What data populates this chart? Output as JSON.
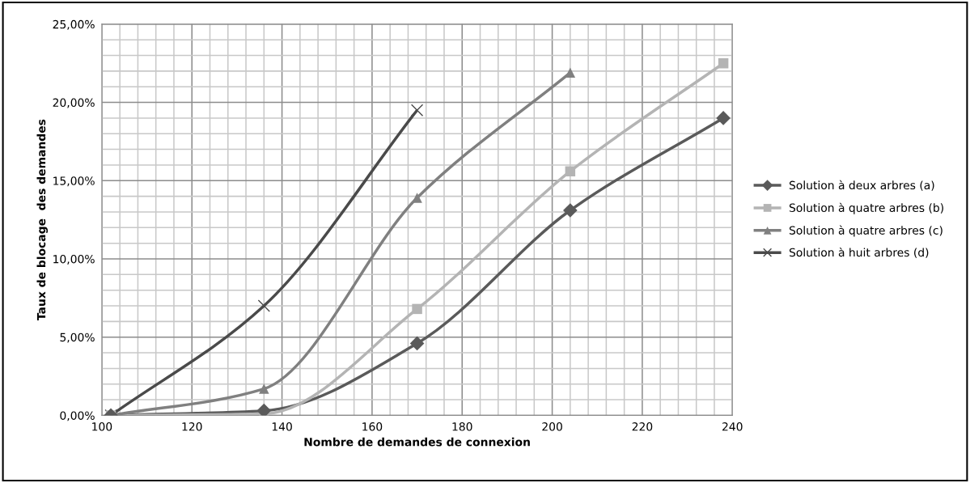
{
  "chart_data": {
    "type": "line",
    "xlabel": "Nombre de demandes de connexion",
    "ylabel": "Taux de blocage  des demandes",
    "x": [
      102,
      136,
      170,
      204,
      238
    ],
    "series": [
      {
        "name": "Solution à deux arbres (a)",
        "color": "#5a5a5a",
        "marker": "diamond",
        "values": [
          0,
          0.3,
          4.6,
          13.1,
          19.0
        ]
      },
      {
        "name": "Solution à quatre arbres (b)",
        "color": "#b4b4b4",
        "marker": "square",
        "values": [
          0,
          0.1,
          6.8,
          15.6,
          22.5
        ]
      },
      {
        "name": "Solution à quatre arbres (c)",
        "color": "#808080",
        "marker": "triangle",
        "values": [
          0,
          1.7,
          13.9,
          21.9,
          null
        ]
      },
      {
        "name": "Solution à huit arbres (d)",
        "color": "#4a4a4a",
        "marker": "cross",
        "values": [
          0,
          7.0,
          19.5,
          null,
          null
        ]
      }
    ],
    "xlim": [
      100,
      240
    ],
    "xticks": [
      100,
      {
        "value": 104,
        "label": null
      },
      {
        "value": 108,
        "label": null
      },
      {
        "value": 112,
        "label": null
      },
      {
        "value": 116,
        "label": null
      },
      120,
      {
        "value": 124,
        "label": null
      },
      {
        "value": 128,
        "label": null
      },
      {
        "value": 132,
        "label": null
      },
      {
        "value": 136,
        "label": null
      },
      140,
      {
        "value": 144,
        "label": null
      },
      {
        "value": 148,
        "label": null
      },
      {
        "value": 152,
        "label": null
      },
      {
        "value": 156,
        "label": null
      },
      160,
      {
        "value": 164,
        "label": null
      },
      {
        "value": 168,
        "label": null
      },
      {
        "value": 172,
        "label": null
      },
      {
        "value": 176,
        "label": null
      },
      180,
      {
        "value": 184,
        "label": null
      },
      {
        "value": 188,
        "label": null
      },
      {
        "value": 192,
        "label": null
      },
      {
        "value": 196,
        "label": null
      },
      200,
      {
        "value": 204,
        "label": null
      },
      {
        "value": 208,
        "label": null
      },
      {
        "value": 212,
        "label": null
      },
      {
        "value": 216,
        "label": null
      },
      220,
      {
        "value": 224,
        "label": null
      },
      {
        "value": 228,
        "label": null
      },
      {
        "value": 232,
        "label": null
      },
      {
        "value": 236,
        "label": null
      },
      240
    ],
    "ylim": [
      0,
      25
    ],
    "yticks": [
      {
        "value": 0,
        "label": "0,00%"
      },
      {
        "value": 1,
        "label": null
      },
      {
        "value": 2,
        "label": null
      },
      {
        "value": 3,
        "label": null
      },
      {
        "value": 4,
        "label": null
      },
      {
        "value": 5,
        "label": "5,00%"
      },
      {
        "value": 6,
        "label": null
      },
      {
        "value": 7,
        "label": null
      },
      {
        "value": 8,
        "label": null
      },
      {
        "value": 9,
        "label": null
      },
      {
        "value": 10,
        "label": "10,00%"
      },
      {
        "value": 11,
        "label": null
      },
      {
        "value": 12,
        "label": null
      },
      {
        "value": 13,
        "label": null
      },
      {
        "value": 14,
        "label": null
      },
      {
        "value": 15,
        "label": "15,00%"
      },
      {
        "value": 16,
        "label": null
      },
      {
        "value": 17,
        "label": null
      },
      {
        "value": 18,
        "label": null
      },
      {
        "value": 19,
        "label": null
      },
      {
        "value": 20,
        "label": "20,00%"
      },
      {
        "value": 21,
        "label": null
      },
      {
        "value": 22,
        "label": null
      },
      {
        "value": 23,
        "label": null
      },
      {
        "value": 24,
        "label": null
      },
      {
        "value": 25,
        "label": "25,00%"
      }
    ],
    "grid": true,
    "legend": "right",
    "line_style": "solid"
  }
}
